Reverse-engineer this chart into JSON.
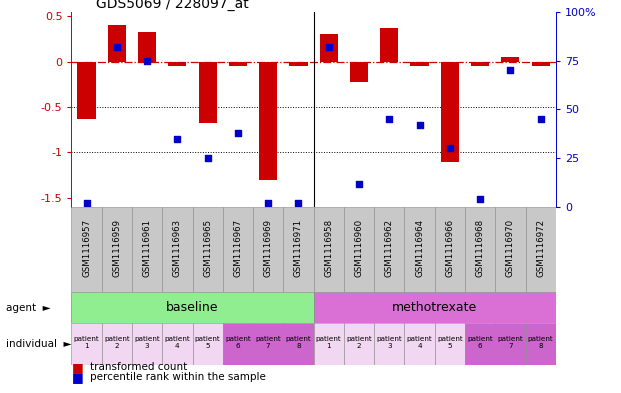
{
  "title": "GDS5069 / 228097_at",
  "samples": [
    "GSM1116957",
    "GSM1116959",
    "GSM1116961",
    "GSM1116963",
    "GSM1116965",
    "GSM1116967",
    "GSM1116969",
    "GSM1116971",
    "GSM1116958",
    "GSM1116960",
    "GSM1116962",
    "GSM1116964",
    "GSM1116966",
    "GSM1116968",
    "GSM1116970",
    "GSM1116972"
  ],
  "transformed_count": [
    -0.63,
    0.4,
    0.33,
    -0.05,
    -0.68,
    -0.05,
    -1.3,
    -0.05,
    0.3,
    -0.22,
    0.37,
    -0.05,
    -1.1,
    -0.05,
    0.05,
    -0.05
  ],
  "percentile_rank": [
    2,
    82,
    75,
    35,
    25,
    38,
    2,
    2,
    82,
    12,
    45,
    42,
    30,
    4,
    70,
    45
  ],
  "agent_labels": [
    "baseline",
    "methotrexate"
  ],
  "agent_colors": [
    "#90EE90",
    "#DA70D6"
  ],
  "bar_color": "#CC0000",
  "dot_color": "#0000CC",
  "ylim_left": [
    -1.6,
    0.55
  ],
  "ylim_right": [
    0,
    100
  ],
  "dotted_lines": [
    -0.5,
    -1.0
  ],
  "left_ticks": [
    -1.5,
    -1.0,
    -0.5,
    0.0,
    0.5
  ],
  "left_tick_labels": [
    "-1.5",
    "-1",
    "-0.5",
    "0",
    "0.5"
  ],
  "right_ticks": [
    0,
    25,
    50,
    75,
    100
  ],
  "right_tick_labels": [
    "0",
    "25",
    "50",
    "75",
    "100%"
  ],
  "ind_colors_baseline": [
    "#F2D7F2",
    "#F2D7F2",
    "#F2D7F2",
    "#F2D7F2",
    "#F2D7F2",
    "#CC66CC",
    "#CC66CC",
    "#CC66CC"
  ],
  "ind_colors_metho": [
    "#F2D7F2",
    "#F2D7F2",
    "#F2D7F2",
    "#F2D7F2",
    "#F2D7F2",
    "#CC66CC",
    "#CC66CC",
    "#CC66CC"
  ],
  "ind_labels": [
    "patient\n1",
    "patient\n2",
    "patient\n3",
    "patient\n4",
    "patient\n5",
    "patient\n6",
    "patient\n7",
    "patient\n8"
  ],
  "sample_bg": "#C8C8C8",
  "legend_bar_label": "transformed count",
  "legend_dot_label": "percentile rank within the sample",
  "agent_row_label": "agent",
  "individual_row_label": "individual"
}
